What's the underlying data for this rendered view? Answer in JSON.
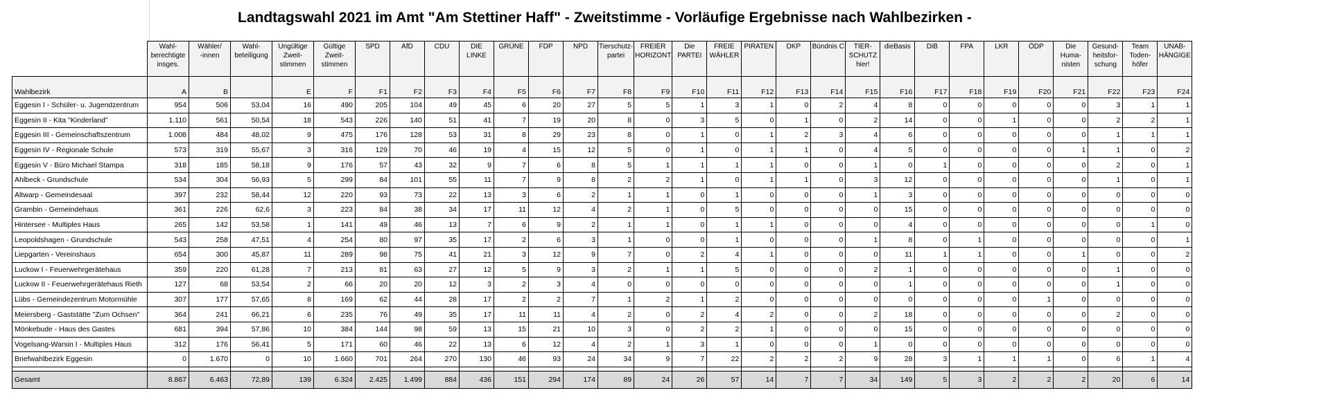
{
  "title": "Landtagswahl 2021 im Amt \"Am Stettiner Haff\" - Zweitstimme - Vorläufige Ergebnisse nach Wahlbezirken -",
  "row_label_header": "Wahlbezirk",
  "columns": [
    {
      "label": "Wahl-\nberechtigte\ninsges.",
      "code": "A"
    },
    {
      "label": "Wähler/\n-innen",
      "code": "B"
    },
    {
      "label": "Wahl-\nbeteiligung",
      "code": ""
    },
    {
      "label": "Ungültige\nZweit-\nstimmen",
      "code": "E"
    },
    {
      "label": "Gültige\nZweit-\nstimmen",
      "code": "F"
    },
    {
      "label": "SPD",
      "code": "F1"
    },
    {
      "label": "AfD",
      "code": "F2"
    },
    {
      "label": "CDU",
      "code": "F3"
    },
    {
      "label": "DIE LINKE",
      "code": "F4"
    },
    {
      "label": "GRÜNE",
      "code": "F5"
    },
    {
      "label": "FDP",
      "code": "F6"
    },
    {
      "label": "NPD",
      "code": "F7"
    },
    {
      "label": "Tierschutz-\npartei",
      "code": "F8"
    },
    {
      "label": "FREIER\nHORIZONT",
      "code": "F9"
    },
    {
      "label": "Die PARTEI",
      "code": "F10"
    },
    {
      "label": "FREIE\nWÄHLER",
      "code": "F11"
    },
    {
      "label": "PIRATEN",
      "code": "F12"
    },
    {
      "label": "DKP",
      "code": "F13"
    },
    {
      "label": "Bündnis C",
      "code": "F14"
    },
    {
      "label": "TIER-\nSCHUTZ\nhier!",
      "code": "F15"
    },
    {
      "label": "dieBasis",
      "code": "F16"
    },
    {
      "label": "DiB",
      "code": "F17"
    },
    {
      "label": "FPA",
      "code": "F18"
    },
    {
      "label": "LKR",
      "code": "F19"
    },
    {
      "label": "ÖDP",
      "code": "F20"
    },
    {
      "label": "Die Huma-\nnisten",
      "code": "F21"
    },
    {
      "label": "Gesund-\nheitsfor-\nschung",
      "code": "F22"
    },
    {
      "label": "Team\nToden-\nhöfer",
      "code": "F23"
    },
    {
      "label": "UNAB-\nHÄNGIGE",
      "code": "F24"
    }
  ],
  "rows": [
    {
      "name": "Eggesin I - Schüler- u. Jugendzentrum",
      "values": [
        "954",
        "506",
        "53,04",
        "16",
        "490",
        "205",
        "104",
        "49",
        "45",
        "6",
        "20",
        "27",
        "5",
        "5",
        "1",
        "3",
        "1",
        "0",
        "2",
        "4",
        "8",
        "0",
        "0",
        "0",
        "0",
        "0",
        "3",
        "1",
        "1"
      ]
    },
    {
      "name": "Eggesin II - Kita \"Kinderland\"",
      "values": [
        "1.110",
        "561",
        "50,54",
        "18",
        "543",
        "226",
        "140",
        "51",
        "41",
        "7",
        "19",
        "20",
        "8",
        "0",
        "3",
        "5",
        "0",
        "1",
        "0",
        "2",
        "14",
        "0",
        "0",
        "1",
        "0",
        "0",
        "2",
        "2",
        "1"
      ]
    },
    {
      "name": "Eggesin III - Gemeinschaftszentrum",
      "values": [
        "1.008",
        "484",
        "48,02",
        "9",
        "475",
        "176",
        "128",
        "53",
        "31",
        "8",
        "29",
        "23",
        "8",
        "0",
        "1",
        "0",
        "1",
        "2",
        "3",
        "4",
        "6",
        "0",
        "0",
        "0",
        "0",
        "0",
        "1",
        "1",
        "1"
      ]
    },
    {
      "name": "Eggesin IV - Regionale Schule",
      "values": [
        "573",
        "319",
        "55,67",
        "3",
        "316",
        "129",
        "70",
        "46",
        "19",
        "4",
        "15",
        "12",
        "5",
        "0",
        "1",
        "0",
        "1",
        "1",
        "0",
        "4",
        "5",
        "0",
        "0",
        "0",
        "0",
        "1",
        "1",
        "0",
        "2"
      ]
    },
    {
      "name": "Eggesin V - Büro Michael Stampa",
      "values": [
        "318",
        "185",
        "58,18",
        "9",
        "176",
        "57",
        "43",
        "32",
        "9",
        "7",
        "6",
        "8",
        "5",
        "1",
        "1",
        "1",
        "1",
        "0",
        "0",
        "1",
        "0",
        "1",
        "0",
        "0",
        "0",
        "0",
        "2",
        "0",
        "1"
      ]
    },
    {
      "name": "Ahlbeck - Grundschule",
      "values": [
        "534",
        "304",
        "56,93",
        "5",
        "299",
        "84",
        "101",
        "55",
        "11",
        "7",
        "9",
        "8",
        "2",
        "2",
        "1",
        "0",
        "1",
        "1",
        "0",
        "3",
        "12",
        "0",
        "0",
        "0",
        "0",
        "0",
        "1",
        "0",
        "1"
      ]
    },
    {
      "name": "Altwarp - Gemeindesaal",
      "values": [
        "397",
        "232",
        "58,44",
        "12",
        "220",
        "93",
        "73",
        "22",
        "13",
        "3",
        "6",
        "2",
        "1",
        "1",
        "0",
        "1",
        "0",
        "0",
        "0",
        "1",
        "3",
        "0",
        "0",
        "0",
        "0",
        "0",
        "0",
        "0",
        "0"
      ]
    },
    {
      "name": "Grambin - Gemeindehaus",
      "values": [
        "361",
        "226",
        "62,6",
        "3",
        "223",
        "84",
        "38",
        "34",
        "17",
        "11",
        "12",
        "4",
        "2",
        "1",
        "0",
        "5",
        "0",
        "0",
        "0",
        "0",
        "15",
        "0",
        "0",
        "0",
        "0",
        "0",
        "0",
        "0",
        "0"
      ]
    },
    {
      "name": "Hintersee - Multiples Haus",
      "values": [
        "265",
        "142",
        "53,58",
        "1",
        "141",
        "49",
        "46",
        "13",
        "7",
        "6",
        "9",
        "2",
        "1",
        "1",
        "0",
        "1",
        "1",
        "0",
        "0",
        "0",
        "4",
        "0",
        "0",
        "0",
        "0",
        "0",
        "0",
        "1",
        "0"
      ]
    },
    {
      "name": "Leopoldshagen - Grundschule",
      "values": [
        "543",
        "258",
        "47,51",
        "4",
        "254",
        "80",
        "97",
        "35",
        "17",
        "2",
        "6",
        "3",
        "1",
        "0",
        "0",
        "1",
        "0",
        "0",
        "0",
        "1",
        "8",
        "0",
        "1",
        "0",
        "0",
        "0",
        "0",
        "0",
        "1"
      ]
    },
    {
      "name": "Liepgarten - Vereinshaus",
      "values": [
        "654",
        "300",
        "45,87",
        "11",
        "289",
        "98",
        "75",
        "41",
        "21",
        "3",
        "12",
        "9",
        "7",
        "0",
        "2",
        "4",
        "1",
        "0",
        "0",
        "0",
        "11",
        "1",
        "1",
        "0",
        "0",
        "1",
        "0",
        "0",
        "2"
      ]
    },
    {
      "name": "Luckow I - Feuerwehrgerätehaus",
      "values": [
        "359",
        "220",
        "61,28",
        "7",
        "213",
        "81",
        "63",
        "27",
        "12",
        "5",
        "9",
        "3",
        "2",
        "1",
        "1",
        "5",
        "0",
        "0",
        "0",
        "2",
        "1",
        "0",
        "0",
        "0",
        "0",
        "0",
        "1",
        "0",
        "0"
      ]
    },
    {
      "name": "Luckow II - Feuerwehrgerätehaus Rieth",
      "values": [
        "127",
        "68",
        "53,54",
        "2",
        "66",
        "20",
        "20",
        "12",
        "3",
        "2",
        "3",
        "4",
        "0",
        "0",
        "0",
        "0",
        "0",
        "0",
        "0",
        "0",
        "1",
        "0",
        "0",
        "0",
        "0",
        "0",
        "1",
        "0",
        "0"
      ]
    },
    {
      "name": "Lübs - Gemeindezentrum Motormühle",
      "values": [
        "307",
        "177",
        "57,65",
        "8",
        "169",
        "62",
        "44",
        "28",
        "17",
        "2",
        "2",
        "7",
        "1",
        "2",
        "1",
        "2",
        "0",
        "0",
        "0",
        "0",
        "0",
        "0",
        "0",
        "0",
        "1",
        "0",
        "0",
        "0",
        "0"
      ]
    },
    {
      "name": "Meiersberg - Gaststätte \"Zum Ochsen\"",
      "values": [
        "364",
        "241",
        "66,21",
        "6",
        "235",
        "76",
        "49",
        "35",
        "17",
        "11",
        "11",
        "4",
        "2",
        "0",
        "2",
        "4",
        "2",
        "0",
        "0",
        "2",
        "18",
        "0",
        "0",
        "0",
        "0",
        "0",
        "2",
        "0",
        "0"
      ]
    },
    {
      "name": "Mönkebude - Haus des Gastes",
      "values": [
        "681",
        "394",
        "57,86",
        "10",
        "384",
        "144",
        "98",
        "59",
        "13",
        "15",
        "21",
        "10",
        "3",
        "0",
        "2",
        "2",
        "1",
        "0",
        "0",
        "0",
        "15",
        "0",
        "0",
        "0",
        "0",
        "0",
        "0",
        "0",
        "0"
      ]
    },
    {
      "name": "Vogelsang-Warsin I - Multiples Haus",
      "values": [
        "312",
        "176",
        "56,41",
        "5",
        "171",
        "60",
        "46",
        "22",
        "13",
        "6",
        "12",
        "4",
        "2",
        "1",
        "3",
        "1",
        "0",
        "0",
        "0",
        "1",
        "0",
        "0",
        "0",
        "0",
        "0",
        "0",
        "0",
        "0",
        "0"
      ]
    },
    {
      "name": "Briefwahlbezirk Eggesin",
      "values": [
        "0",
        "1.670",
        "0",
        "10",
        "1.660",
        "701",
        "264",
        "270",
        "130",
        "46",
        "93",
        "24",
        "34",
        "9",
        "7",
        "22",
        "2",
        "2",
        "2",
        "9",
        "28",
        "3",
        "1",
        "1",
        "1",
        "0",
        "6",
        "1",
        "4"
      ]
    }
  ],
  "total": {
    "name": "Gesamt",
    "values": [
      "8.867",
      "6.463",
      "72,89",
      "139",
      "6.324",
      "2.425",
      "1.499",
      "884",
      "436",
      "151",
      "294",
      "174",
      "89",
      "24",
      "26",
      "57",
      "14",
      "7",
      "7",
      "34",
      "149",
      "5",
      "3",
      "2",
      "2",
      "2",
      "20",
      "6",
      "14"
    ]
  }
}
